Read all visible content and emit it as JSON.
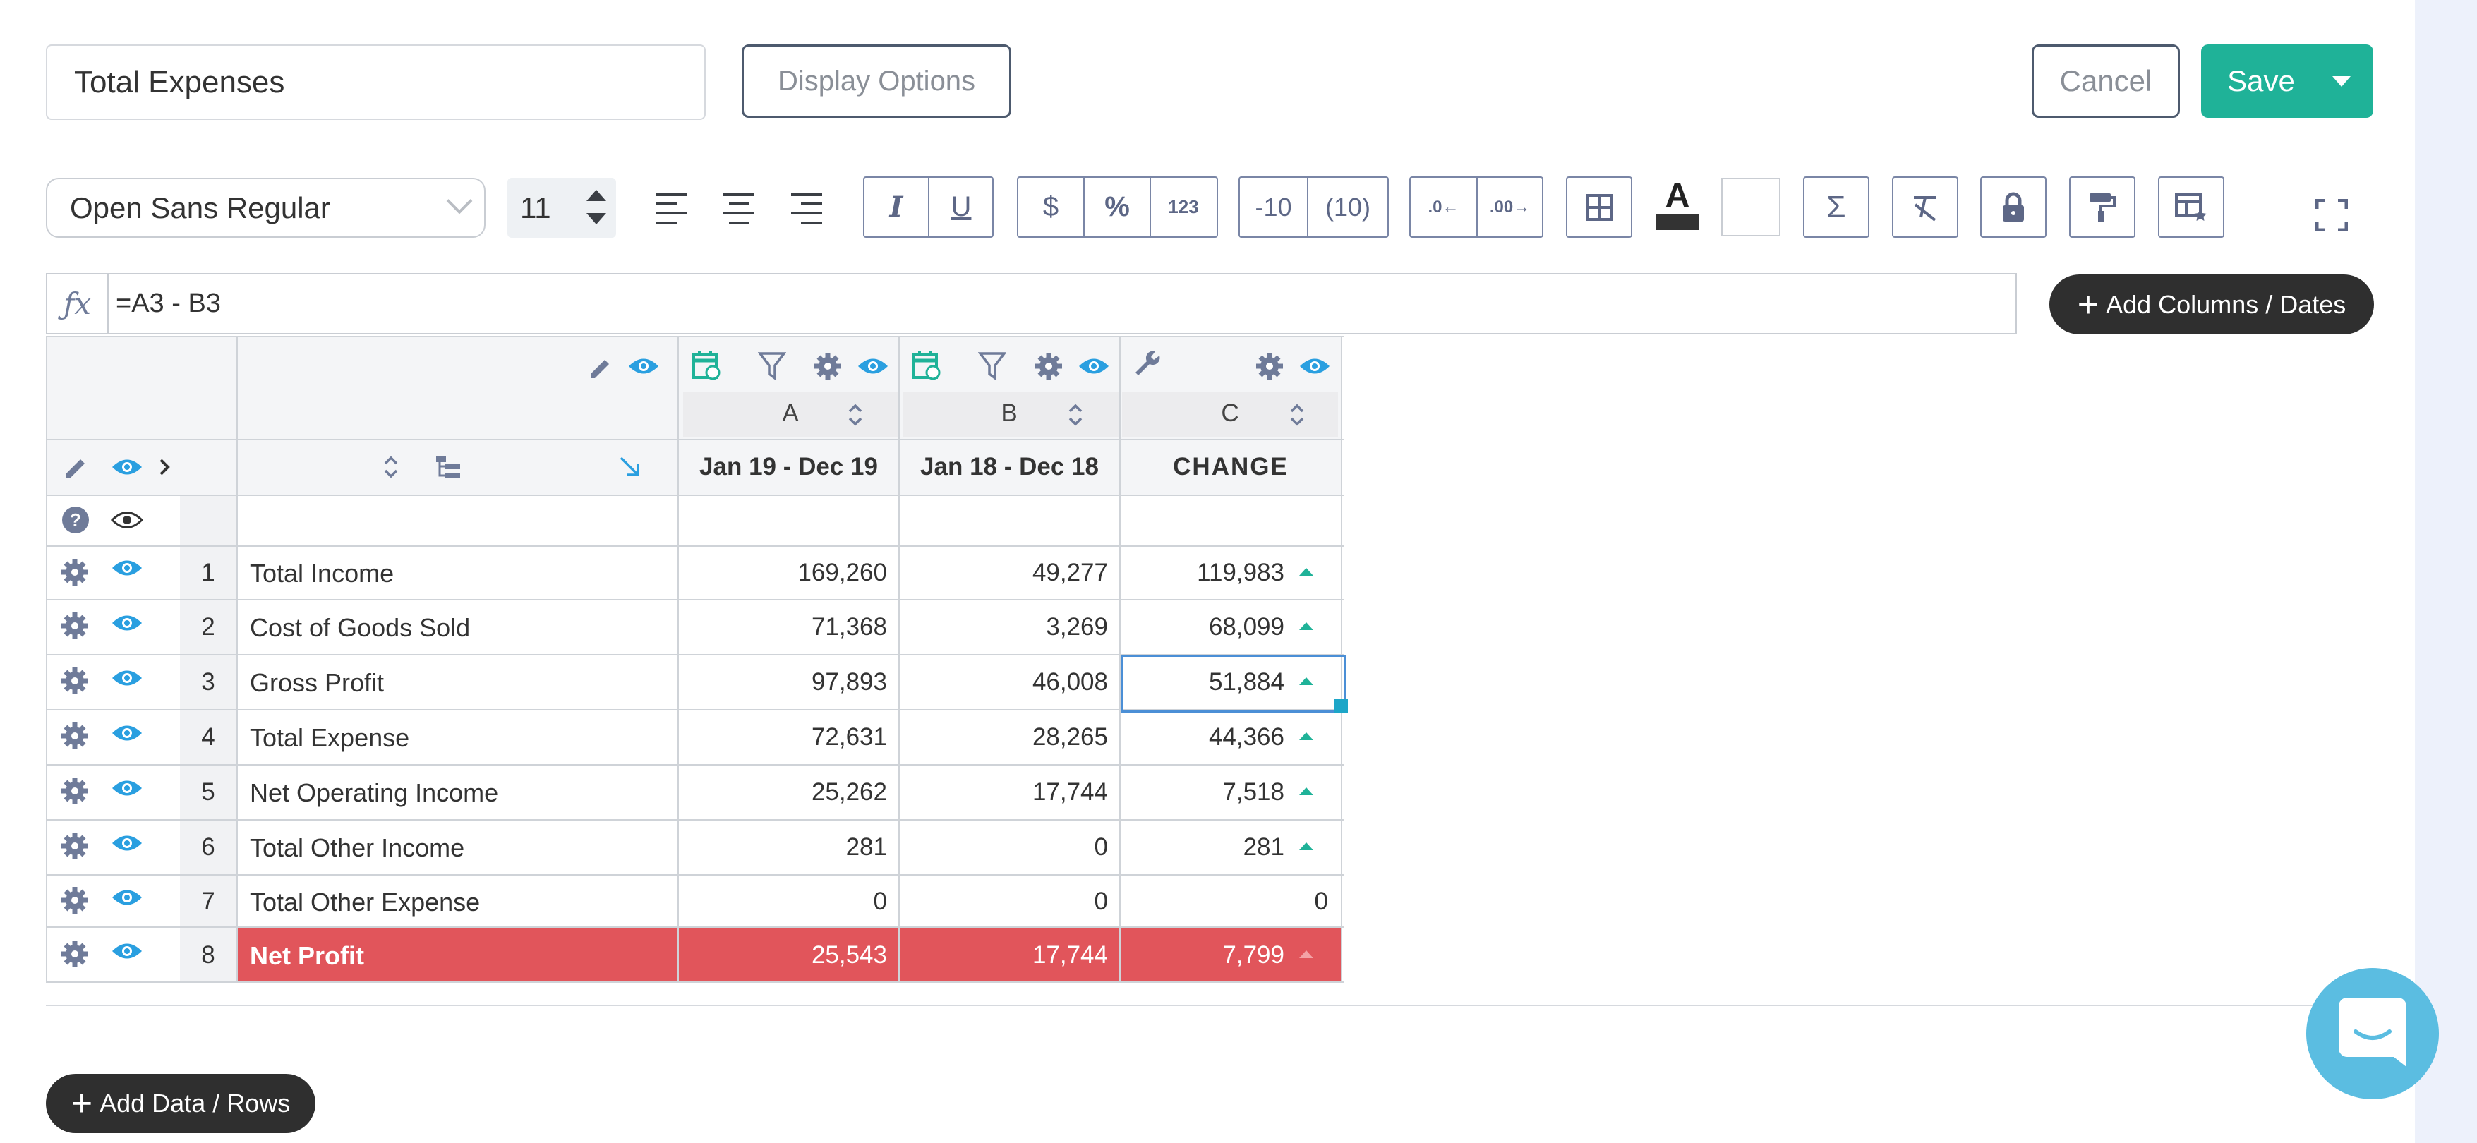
{
  "header": {
    "title_value": "Total Expenses",
    "display_options": "Display Options",
    "cancel": "Cancel",
    "save": "Save"
  },
  "toolbar": {
    "font": "Open Sans Regular",
    "size": "11",
    "neg1": "-10",
    "neg2": "(10)",
    "num": "123",
    "sigma": "Σ"
  },
  "formula": {
    "fx": "fx",
    "value": "=A3 - B3"
  },
  "add_columns": "Add Columns / Dates",
  "add_rows": "Add Data / Rows",
  "columns": [
    {
      "letter": "A",
      "header": "Jan 19 - Dec 19"
    },
    {
      "letter": "B",
      "header": "Jan 18 - Dec 18"
    },
    {
      "letter": "C",
      "header": "CHANGE"
    }
  ],
  "rows": [
    {
      "idx": "1",
      "label": "Total Income",
      "a": "169,260",
      "b": "49,277",
      "c": "119,983",
      "up": true
    },
    {
      "idx": "2",
      "label": "Cost of Goods Sold",
      "a": "71,368",
      "b": "3,269",
      "c": "68,099",
      "up": true
    },
    {
      "idx": "3",
      "label": "Gross Profit",
      "a": "97,893",
      "b": "46,008",
      "c": "51,884",
      "up": true
    },
    {
      "idx": "4",
      "label": "Total Expense",
      "a": "72,631",
      "b": "28,265",
      "c": "44,366",
      "up": true
    },
    {
      "idx": "5",
      "label": "Net Operating Income",
      "a": "25,262",
      "b": "17,744",
      "c": "7,518",
      "up": true
    },
    {
      "idx": "6",
      "label": "Total Other Income",
      "a": "281",
      "b": "0",
      "c": "281",
      "up": true
    },
    {
      "idx": "7",
      "label": "Total Other Expense",
      "a": "0",
      "b": "0",
      "c": "0",
      "up": false
    },
    {
      "idx": "8",
      "label": "Net Profit",
      "a": "25,543",
      "b": "17,744",
      "c": "7,799",
      "up": true
    }
  ],
  "colors": {
    "accent": "#1fb298",
    "net_profit_row": "#e1555b",
    "icon_blue": "#2a9fe0",
    "icon_gray": "#6f7b99"
  }
}
